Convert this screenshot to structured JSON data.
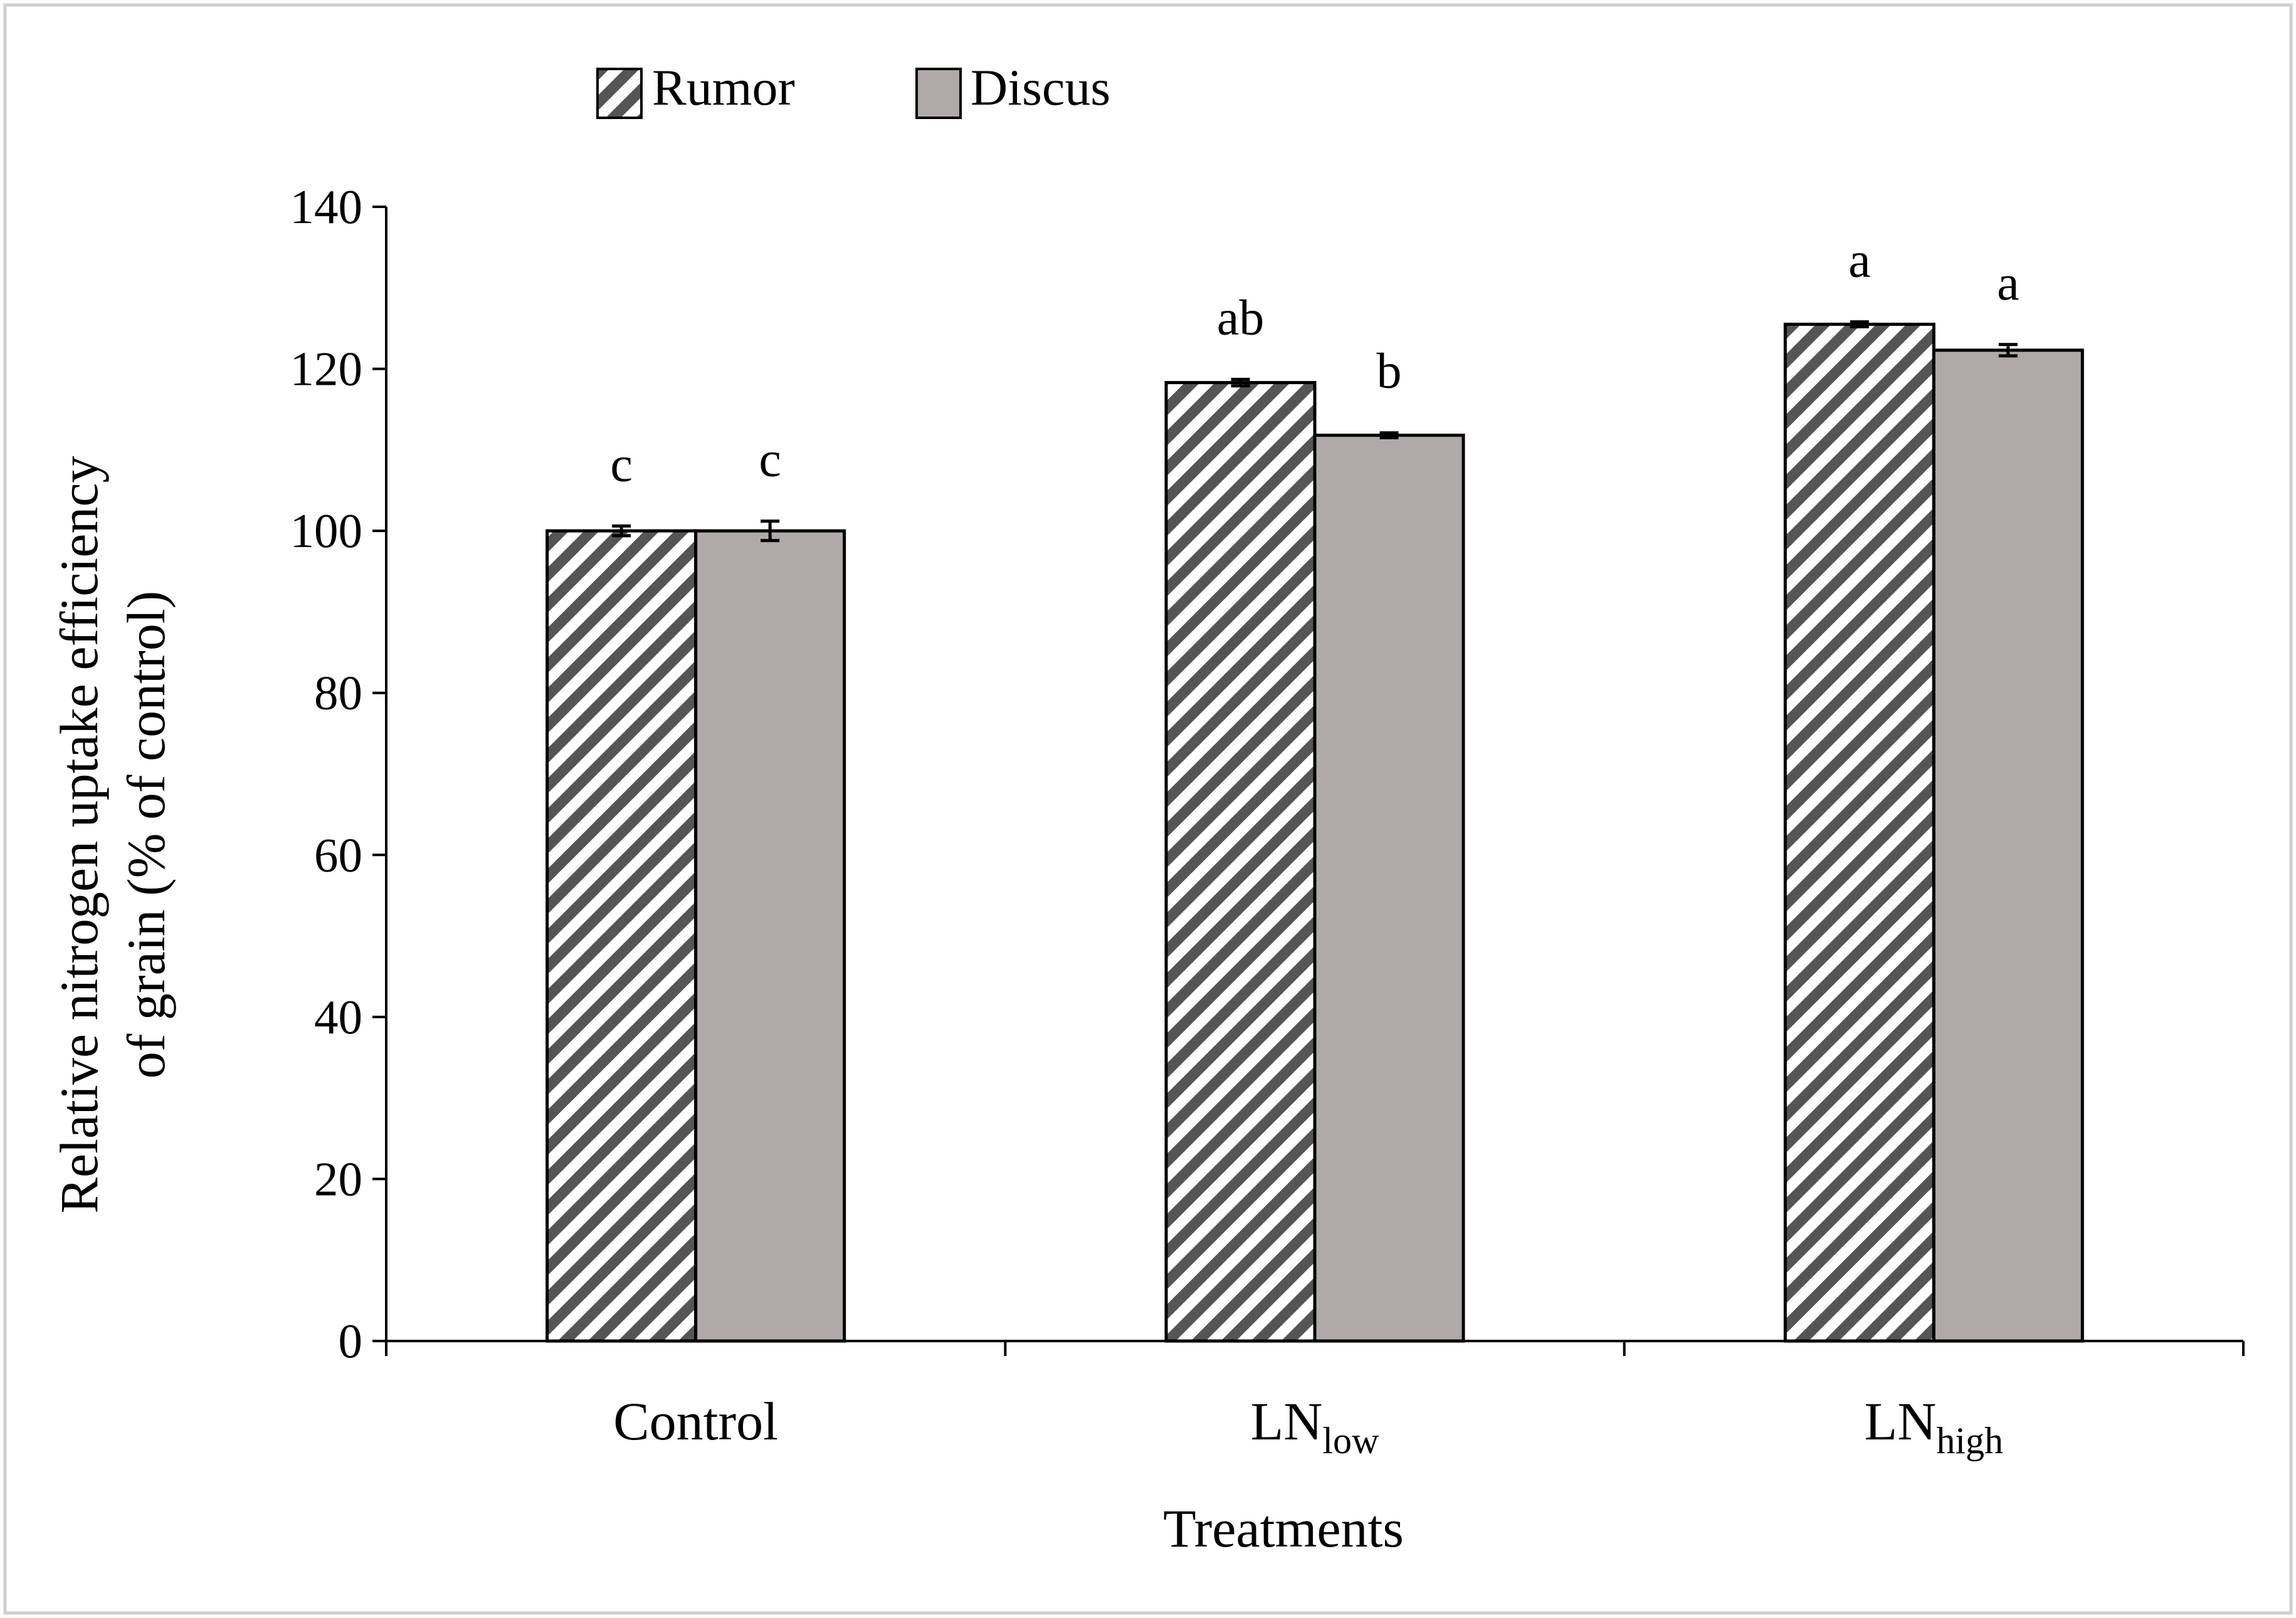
{
  "chart_data": {
    "type": "bar",
    "title": "",
    "xlabel": "Treatments",
    "ylabel_line1": "Relative nitrogen uptake efficiency",
    "ylabel_line2": "of grain (% of control)",
    "ylim": [
      0,
      140
    ],
    "yticks": [
      0,
      20,
      40,
      60,
      80,
      100,
      120,
      140
    ],
    "ytick_labels": [
      "0",
      "20",
      "40",
      "60",
      "80",
      "100",
      "120",
      "140"
    ],
    "categories": [
      {
        "main": "Control",
        "sub": ""
      },
      {
        "main": "LN",
        "sub": "low"
      },
      {
        "main": "LN",
        "sub": "high"
      }
    ],
    "legend_position": "top-left",
    "series": [
      {
        "name": "Rumor",
        "pattern": "diagonal-stripes",
        "color": "#555555",
        "values": [
          100.0,
          118.3,
          125.5
        ],
        "errors": [
          0.6,
          0.4,
          0.3
        ],
        "labels": [
          "c",
          "ab",
          "a"
        ]
      },
      {
        "name": "Discus",
        "pattern": "solid",
        "color": "#afa9a9",
        "values": [
          100.0,
          111.8,
          122.3
        ],
        "errors": [
          1.2,
          0.3,
          0.7
        ],
        "labels": [
          "c",
          "b",
          "a"
        ]
      }
    ]
  }
}
